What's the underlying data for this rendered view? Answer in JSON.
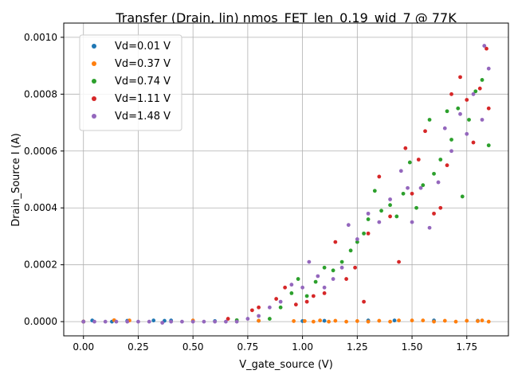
{
  "chart_data": {
    "type": "scatter",
    "title": "Transfer (Drain, lin) nmos_FET_len_0.19_wid_7 @ 77K",
    "xlabel": "V_gate_source (V)",
    "ylabel": "Drain_Source I (A)",
    "xlim": [
      -0.09,
      1.94
    ],
    "ylim": [
      -5e-05,
      0.00105
    ],
    "xticks": [
      0.0,
      0.25,
      0.5,
      0.75,
      1.0,
      1.25,
      1.5,
      1.75
    ],
    "xtick_labels": [
      "0.00",
      "0.25",
      "0.50",
      "0.75",
      "1.00",
      "1.25",
      "1.50",
      "1.75"
    ],
    "yticks": [
      0.0,
      0.0002,
      0.0004,
      0.0006,
      0.0008,
      0.001
    ],
    "ytick_labels": [
      "0.0000",
      "0.0002",
      "0.0004",
      "0.0006",
      "0.0008",
      "0.0010"
    ],
    "grid": true,
    "legend_position": "upper-left",
    "series": [
      {
        "name": "Vd=0.01 V",
        "color": "#1f77b4",
        "points": [
          [
            0.0,
            0.0
          ],
          [
            0.04,
            4e-06
          ],
          [
            0.13,
            0.0
          ],
          [
            0.2,
            3e-06
          ],
          [
            0.32,
            4e-06
          ],
          [
            0.37,
            3e-06
          ],
          [
            0.4,
            4e-06
          ],
          [
            0.6,
            2e-06
          ],
          [
            0.8,
            3e-06
          ],
          [
            1.0,
            2e-06
          ],
          [
            1.1,
            3e-06
          ],
          [
            1.3,
            4e-06
          ],
          [
            1.42,
            4e-06
          ],
          [
            1.6,
            4e-06
          ],
          [
            1.8,
            3e-06
          ]
        ]
      },
      {
        "name": "Vd=0.37 V",
        "color": "#ff7f0e",
        "points": [
          [
            0.0,
            0.0
          ],
          [
            0.14,
            5e-06
          ],
          [
            0.21,
            4e-06
          ],
          [
            0.5,
            4e-06
          ],
          [
            0.8,
            3e-06
          ],
          [
            0.96,
            2e-06
          ],
          [
            1.01,
            2e-06
          ],
          [
            1.05,
            0.0
          ],
          [
            1.08,
            4e-06
          ],
          [
            1.12,
            0.0
          ],
          [
            1.15,
            3e-06
          ],
          [
            1.2,
            0.0
          ],
          [
            1.25,
            2e-06
          ],
          [
            1.3,
            0.0
          ],
          [
            1.35,
            3e-06
          ],
          [
            1.4,
            0.0
          ],
          [
            1.44,
            4e-06
          ],
          [
            1.5,
            4e-06
          ],
          [
            1.55,
            4e-06
          ],
          [
            1.6,
            0.0
          ],
          [
            1.65,
            3e-06
          ],
          [
            1.7,
            0.0
          ],
          [
            1.75,
            3e-06
          ],
          [
            1.8,
            2e-06
          ],
          [
            1.82,
            4e-06
          ],
          [
            1.85,
            0.0
          ]
        ]
      },
      {
        "name": "Vd=0.74 V",
        "color": "#2ca02c",
        "points": [
          [
            0.0,
            0.0
          ],
          [
            0.7,
            5e-06
          ],
          [
            0.85,
            1e-05
          ],
          [
            0.9,
            5e-05
          ],
          [
            0.95,
            0.0001
          ],
          [
            0.98,
            0.00015
          ],
          [
            1.02,
            9e-05
          ],
          [
            1.06,
            0.00014
          ],
          [
            1.1,
            0.00019
          ],
          [
            1.14,
            0.00018
          ],
          [
            1.18,
            0.00021
          ],
          [
            1.22,
            0.00025
          ],
          [
            1.25,
            0.00028
          ],
          [
            1.28,
            0.00031
          ],
          [
            1.3,
            0.00036
          ],
          [
            1.33,
            0.00046
          ],
          [
            1.36,
            0.00039
          ],
          [
            1.4,
            0.00041
          ],
          [
            1.43,
            0.00037
          ],
          [
            1.46,
            0.00045
          ],
          [
            1.49,
            0.00056
          ],
          [
            1.52,
            0.0004
          ],
          [
            1.55,
            0.00048
          ],
          [
            1.58,
            0.00071
          ],
          [
            1.6,
            0.00052
          ],
          [
            1.63,
            0.00057
          ],
          [
            1.66,
            0.00074
          ],
          [
            1.68,
            0.00064
          ],
          [
            1.71,
            0.00075
          ],
          [
            1.73,
            0.00044
          ],
          [
            1.76,
            0.00071
          ],
          [
            1.79,
            0.00081
          ],
          [
            1.82,
            0.00085
          ],
          [
            1.85,
            0.00062
          ]
        ]
      },
      {
        "name": "Vd=1.11 V",
        "color": "#d62728",
        "points": [
          [
            0.0,
            0.0
          ],
          [
            0.66,
            1e-05
          ],
          [
            0.77,
            4e-05
          ],
          [
            0.8,
            5e-05
          ],
          [
            0.88,
            8e-05
          ],
          [
            0.92,
            0.00012
          ],
          [
            0.97,
            6e-05
          ],
          [
            1.02,
            7e-05
          ],
          [
            1.05,
            9e-05
          ],
          [
            1.1,
            0.0001
          ],
          [
            1.15,
            0.00028
          ],
          [
            1.2,
            0.00015
          ],
          [
            1.24,
            0.00019
          ],
          [
            1.28,
            7e-05
          ],
          [
            1.3,
            0.00031
          ],
          [
            1.35,
            0.00051
          ],
          [
            1.4,
            0.00037
          ],
          [
            1.44,
            0.00021
          ],
          [
            1.47,
            0.00061
          ],
          [
            1.5,
            0.00045
          ],
          [
            1.53,
            0.00057
          ],
          [
            1.56,
            0.00067
          ],
          [
            1.6,
            0.00038
          ],
          [
            1.63,
            0.0004
          ],
          [
            1.66,
            0.00055
          ],
          [
            1.68,
            0.0008
          ],
          [
            1.72,
            0.00086
          ],
          [
            1.75,
            0.00078
          ],
          [
            1.78,
            0.00063
          ],
          [
            1.81,
            0.00082
          ],
          [
            1.84,
            0.00096
          ],
          [
            1.85,
            0.00075
          ]
        ]
      },
      {
        "name": "Vd=1.48 V",
        "color": "#9467bd",
        "points": [
          [
            0.0,
            0.0
          ],
          [
            0.05,
            0.0
          ],
          [
            0.1,
            0.0
          ],
          [
            0.15,
            0.0
          ],
          [
            0.2,
            0.0
          ],
          [
            0.25,
            0.0
          ],
          [
            0.3,
            0.0
          ],
          [
            0.36,
            -4e-06
          ],
          [
            0.4,
            0.0
          ],
          [
            0.45,
            0.0
          ],
          [
            0.5,
            0.0
          ],
          [
            0.55,
            0.0
          ],
          [
            0.6,
            0.0
          ],
          [
            0.65,
            0.0
          ],
          [
            0.7,
            0.0
          ],
          [
            0.75,
            1e-05
          ],
          [
            0.8,
            2e-05
          ],
          [
            0.85,
            5e-05
          ],
          [
            0.9,
            7e-05
          ],
          [
            0.95,
            0.00013
          ],
          [
            1.0,
            0.00012
          ],
          [
            1.03,
            0.00021
          ],
          [
            1.07,
            0.00016
          ],
          [
            1.1,
            0.00012
          ],
          [
            1.14,
            0.00015
          ],
          [
            1.18,
            0.00019
          ],
          [
            1.21,
            0.00034
          ],
          [
            1.25,
            0.00029
          ],
          [
            1.3,
            0.00038
          ],
          [
            1.35,
            0.00035
          ],
          [
            1.4,
            0.00043
          ],
          [
            1.45,
            0.00053
          ],
          [
            1.48,
            0.00047
          ],
          [
            1.5,
            0.00035
          ],
          [
            1.54,
            0.00047
          ],
          [
            1.58,
            0.00033
          ],
          [
            1.62,
            0.00049
          ],
          [
            1.65,
            0.00068
          ],
          [
            1.68,
            0.0006
          ],
          [
            1.72,
            0.00073
          ],
          [
            1.75,
            0.00066
          ],
          [
            1.78,
            0.0008
          ],
          [
            1.82,
            0.00071
          ],
          [
            1.83,
            0.00097
          ],
          [
            1.85,
            0.00089
          ]
        ]
      }
    ]
  }
}
